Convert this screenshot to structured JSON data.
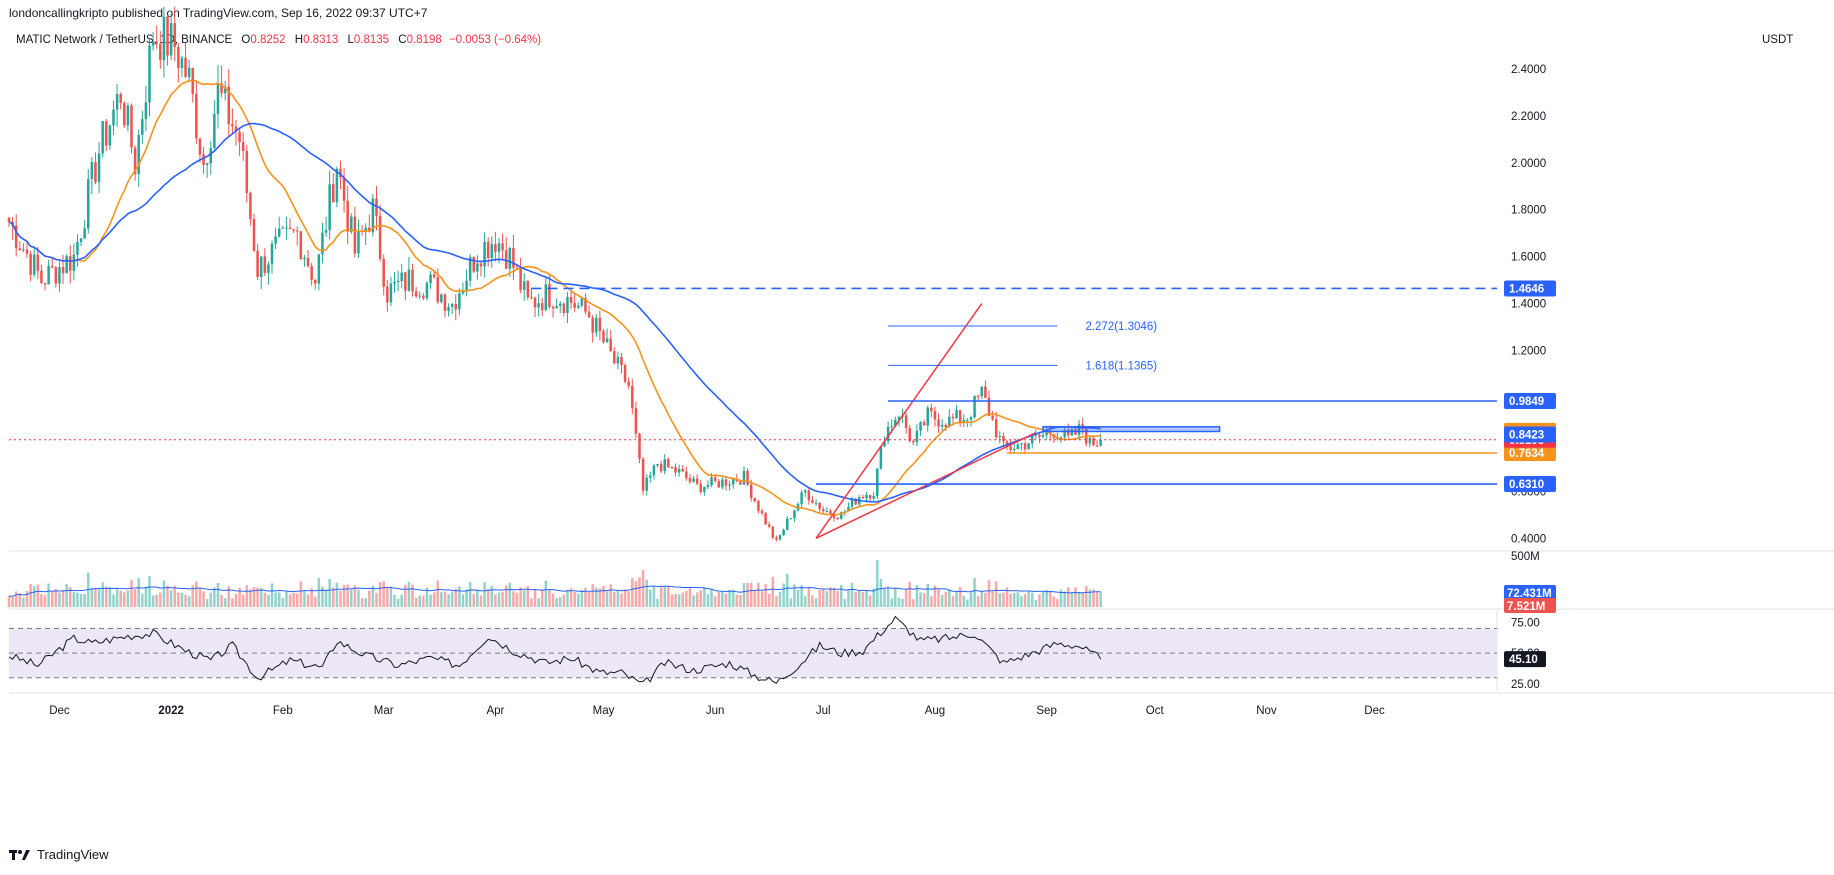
{
  "publisher": "londoncallingkripto published on TradingView.com, Sep 16, 2022 09:37 UTC+7",
  "legend": {
    "symbol": "MATIC Network / TetherUS, 1D, BINANCE",
    "o_label": "O",
    "o": "0.8252",
    "h_label": "H",
    "h": "0.8313",
    "l_label": "L",
    "l": "0.8135",
    "c_label": "C",
    "c": "0.8198",
    "change": "−0.0053 (−0.64%)"
  },
  "price_unit": "USDT",
  "footer_brand": "TradingView",
  "colors": {
    "up": "#26a69a",
    "down": "#ef5350",
    "ma_fast": "#f7931a",
    "ma_slow": "#2962ff",
    "trend": "#f23645",
    "level_blue": "#2962ff",
    "level_orange": "#f7931a",
    "rsi_band": "#ede7f6"
  },
  "chart_data": [
    {
      "type": "candlestick",
      "title": "MATIC Network / TetherUS, 1D, BINANCE",
      "ylabel": "USDT",
      "ylim": [
        0.35,
        2.6
      ],
      "y_ticks": [
        "2.4000",
        "2.2000",
        "2.0000",
        "1.8000",
        "1.6000",
        "1.4000",
        "1.2000",
        "1.0000",
        "0.8000",
        "0.6000",
        "0.4000"
      ],
      "x_ticks": [
        {
          "date": "2021-12-01",
          "label": "Dec"
        },
        {
          "date": "2022-01-01",
          "label": "2022",
          "bold": true
        },
        {
          "date": "2022-02-01",
          "label": "Feb"
        },
        {
          "date": "2022-03-01",
          "label": "Mar"
        },
        {
          "date": "2022-04-01",
          "label": "Apr"
        },
        {
          "date": "2022-05-01",
          "label": "May"
        },
        {
          "date": "2022-06-01",
          "label": "Jun"
        },
        {
          "date": "2022-07-01",
          "label": "Jul"
        },
        {
          "date": "2022-08-01",
          "label": "Aug"
        },
        {
          "date": "2022-09-01",
          "label": "Sep"
        },
        {
          "date": "2022-10-01",
          "label": "Oct"
        },
        {
          "date": "2022-11-01",
          "label": "Nov"
        },
        {
          "date": "2022-12-01",
          "label": "Dec"
        }
      ],
      "x_range": [
        "2021-11-17",
        "2023-01-04"
      ],
      "price_path": [
        {
          "date": "2021-11-17",
          "close": 1.75
        },
        {
          "date": "2021-11-26",
          "close": 1.5
        },
        {
          "date": "2021-12-05",
          "close": 1.6
        },
        {
          "date": "2021-12-12",
          "close": 2.05
        },
        {
          "date": "2021-12-18",
          "close": 2.3
        },
        {
          "date": "2021-12-22",
          "close": 2.0
        },
        {
          "date": "2021-12-27",
          "close": 2.55
        },
        {
          "date": "2022-01-02",
          "close": 2.5
        },
        {
          "date": "2022-01-06",
          "close": 2.35
        },
        {
          "date": "2022-01-10",
          "close": 2.0
        },
        {
          "date": "2022-01-14",
          "close": 2.3
        },
        {
          "date": "2022-01-20",
          "close": 2.1
        },
        {
          "date": "2022-01-25",
          "close": 1.55
        },
        {
          "date": "2022-01-31",
          "close": 1.65
        },
        {
          "date": "2022-02-05",
          "close": 1.7
        },
        {
          "date": "2022-02-10",
          "close": 1.5
        },
        {
          "date": "2022-02-16",
          "close": 2.0
        },
        {
          "date": "2022-02-21",
          "close": 1.62
        },
        {
          "date": "2022-02-26",
          "close": 1.8
        },
        {
          "date": "2022-03-02",
          "close": 1.45
        },
        {
          "date": "2022-03-08",
          "close": 1.5
        },
        {
          "date": "2022-03-14",
          "close": 1.48
        },
        {
          "date": "2022-03-20",
          "close": 1.4
        },
        {
          "date": "2022-03-27",
          "close": 1.62
        },
        {
          "date": "2022-04-01",
          "close": 1.68
        },
        {
          "date": "2022-04-05",
          "close": 1.6
        },
        {
          "date": "2022-04-10",
          "close": 1.4
        },
        {
          "date": "2022-04-16",
          "close": 1.44
        },
        {
          "date": "2022-04-22",
          "close": 1.41
        },
        {
          "date": "2022-04-27",
          "close": 1.35
        },
        {
          "date": "2022-05-04",
          "close": 1.15
        },
        {
          "date": "2022-05-08",
          "close": 1.05
        },
        {
          "date": "2022-05-12",
          "close": 0.6
        },
        {
          "date": "2022-05-16",
          "close": 0.72
        },
        {
          "date": "2022-05-22",
          "close": 0.68
        },
        {
          "date": "2022-05-27",
          "close": 0.62
        },
        {
          "date": "2022-06-03",
          "close": 0.64
        },
        {
          "date": "2022-06-09",
          "close": 0.66
        },
        {
          "date": "2022-06-14",
          "close": 0.5
        },
        {
          "date": "2022-06-18",
          "close": 0.38
        },
        {
          "date": "2022-06-22",
          "close": 0.5
        },
        {
          "date": "2022-06-26",
          "close": 0.6
        },
        {
          "date": "2022-07-01",
          "close": 0.52
        },
        {
          "date": "2022-07-06",
          "close": 0.5
        },
        {
          "date": "2022-07-11",
          "close": 0.58
        },
        {
          "date": "2022-07-15",
          "close": 0.6
        },
        {
          "date": "2022-07-18",
          "close": 0.85
        },
        {
          "date": "2022-07-22",
          "close": 0.94
        },
        {
          "date": "2022-07-26",
          "close": 0.8
        },
        {
          "date": "2022-07-30",
          "close": 0.92
        },
        {
          "date": "2022-08-05",
          "close": 0.9
        },
        {
          "date": "2022-08-10",
          "close": 0.92
        },
        {
          "date": "2022-08-14",
          "close": 1.02
        },
        {
          "date": "2022-08-17",
          "close": 0.9
        },
        {
          "date": "2022-08-20",
          "close": 0.78
        },
        {
          "date": "2022-08-25",
          "close": 0.8
        },
        {
          "date": "2022-08-30",
          "close": 0.83
        },
        {
          "date": "2022-09-03",
          "close": 0.86
        },
        {
          "date": "2022-09-07",
          "close": 0.82
        },
        {
          "date": "2022-09-11",
          "close": 0.87
        },
        {
          "date": "2022-09-13",
          "close": 0.8
        },
        {
          "date": "2022-09-16",
          "close": 0.8198
        }
      ],
      "series": [
        {
          "name": "ma_fast",
          "line_color": "#f7931a",
          "length": 20
        },
        {
          "name": "ma_slow",
          "line_color": "#2962ff",
          "length": 50
        }
      ],
      "levels": [
        {
          "value": 1.4646,
          "label": "1.4646",
          "style": "dashed",
          "color": "#2962ff",
          "from": "2022-04-11"
        },
        {
          "value": 0.9849,
          "label": "0.9849",
          "style": "solid",
          "color": "#2962ff",
          "from": "2022-07-19"
        },
        {
          "value": 0.631,
          "label": "0.6310",
          "style": "solid",
          "color": "#2962ff",
          "from": "2022-06-29"
        },
        {
          "value": 0.7634,
          "label": "0.7634",
          "style": "solid",
          "color": "#f7931a",
          "from": "2022-08-21"
        },
        {
          "value": 0.8198,
          "label": "0.8198",
          "style": "dotted",
          "color": "#f23645",
          "from": "2021-11-17"
        }
      ],
      "axis_labels": [
        {
          "value": 0.8579,
          "label": "0.8579",
          "color": "#f7931a"
        },
        {
          "value": 0.8423,
          "label": "0.8423",
          "color": "#2962ff"
        }
      ],
      "fib_levels": [
        {
          "value": 1.3046,
          "label": "2.272(1.3046)",
          "from": "2022-07-19",
          "to": "2022-09-04"
        },
        {
          "value": 1.1365,
          "label": "1.618(1.1365)",
          "from": "2022-07-19",
          "to": "2022-09-04"
        }
      ],
      "zone": {
        "from": "2022-08-31",
        "to": "2022-10-19",
        "top": 0.875,
        "bottom": 0.855
      },
      "trendlines": [
        {
          "from": [
            "2022-06-29",
            0.4
          ],
          "to": [
            "2022-08-14",
            1.4
          ]
        },
        {
          "from": [
            "2022-06-29",
            0.4
          ],
          "to": [
            "2022-08-29",
            0.85
          ]
        }
      ]
    },
    {
      "type": "bar",
      "title": "Volume",
      "y_ticks": [
        "500M"
      ],
      "last_labels": [
        {
          "label": "72.431M",
          "color": "#2962ff"
        },
        {
          "label": "7.521M",
          "color": "#ef5350"
        }
      ]
    },
    {
      "type": "line",
      "title": "RSI",
      "ylim": [
        20,
        85
      ],
      "y_ticks": [
        "75.00",
        "50.00",
        "25.00"
      ],
      "bands": [
        30,
        50,
        70
      ],
      "last_value": 45.1,
      "last_label": "45.10",
      "rsi_path": [
        {
          "date": "2021-11-17",
          "v": 48
        },
        {
          "date": "2021-11-25",
          "v": 40
        },
        {
          "date": "2021-12-05",
          "v": 62
        },
        {
          "date": "2021-12-10",
          "v": 58
        },
        {
          "date": "2021-12-20",
          "v": 64
        },
        {
          "date": "2021-12-27",
          "v": 66
        },
        {
          "date": "2022-01-05",
          "v": 52
        },
        {
          "date": "2022-01-12",
          "v": 44
        },
        {
          "date": "2022-01-18",
          "v": 56
        },
        {
          "date": "2022-01-25",
          "v": 30
        },
        {
          "date": "2022-02-03",
          "v": 44
        },
        {
          "date": "2022-02-12",
          "v": 38
        },
        {
          "date": "2022-02-16",
          "v": 60
        },
        {
          "date": "2022-02-24",
          "v": 48
        },
        {
          "date": "2022-03-05",
          "v": 40
        },
        {
          "date": "2022-03-14",
          "v": 46
        },
        {
          "date": "2022-03-22",
          "v": 40
        },
        {
          "date": "2022-03-30",
          "v": 64
        },
        {
          "date": "2022-04-06",
          "v": 52
        },
        {
          "date": "2022-04-15",
          "v": 42
        },
        {
          "date": "2022-04-22",
          "v": 46
        },
        {
          "date": "2022-04-30",
          "v": 34
        },
        {
          "date": "2022-05-06",
          "v": 34
        },
        {
          "date": "2022-05-12",
          "v": 24
        },
        {
          "date": "2022-05-18",
          "v": 42
        },
        {
          "date": "2022-05-26",
          "v": 36
        },
        {
          "date": "2022-06-05",
          "v": 42
        },
        {
          "date": "2022-06-12",
          "v": 32
        },
        {
          "date": "2022-06-18",
          "v": 26
        },
        {
          "date": "2022-06-24",
          "v": 40
        },
        {
          "date": "2022-06-30",
          "v": 56
        },
        {
          "date": "2022-07-06",
          "v": 50
        },
        {
          "date": "2022-07-12",
          "v": 52
        },
        {
          "date": "2022-07-18",
          "v": 70
        },
        {
          "date": "2022-07-21",
          "v": 78
        },
        {
          "date": "2022-07-28",
          "v": 60
        },
        {
          "date": "2022-08-04",
          "v": 62
        },
        {
          "date": "2022-08-12",
          "v": 66
        },
        {
          "date": "2022-08-20",
          "v": 42
        },
        {
          "date": "2022-08-28",
          "v": 50
        },
        {
          "date": "2022-09-04",
          "v": 58
        },
        {
          "date": "2022-09-10",
          "v": 56
        },
        {
          "date": "2022-09-16",
          "v": 45.1
        }
      ]
    }
  ]
}
